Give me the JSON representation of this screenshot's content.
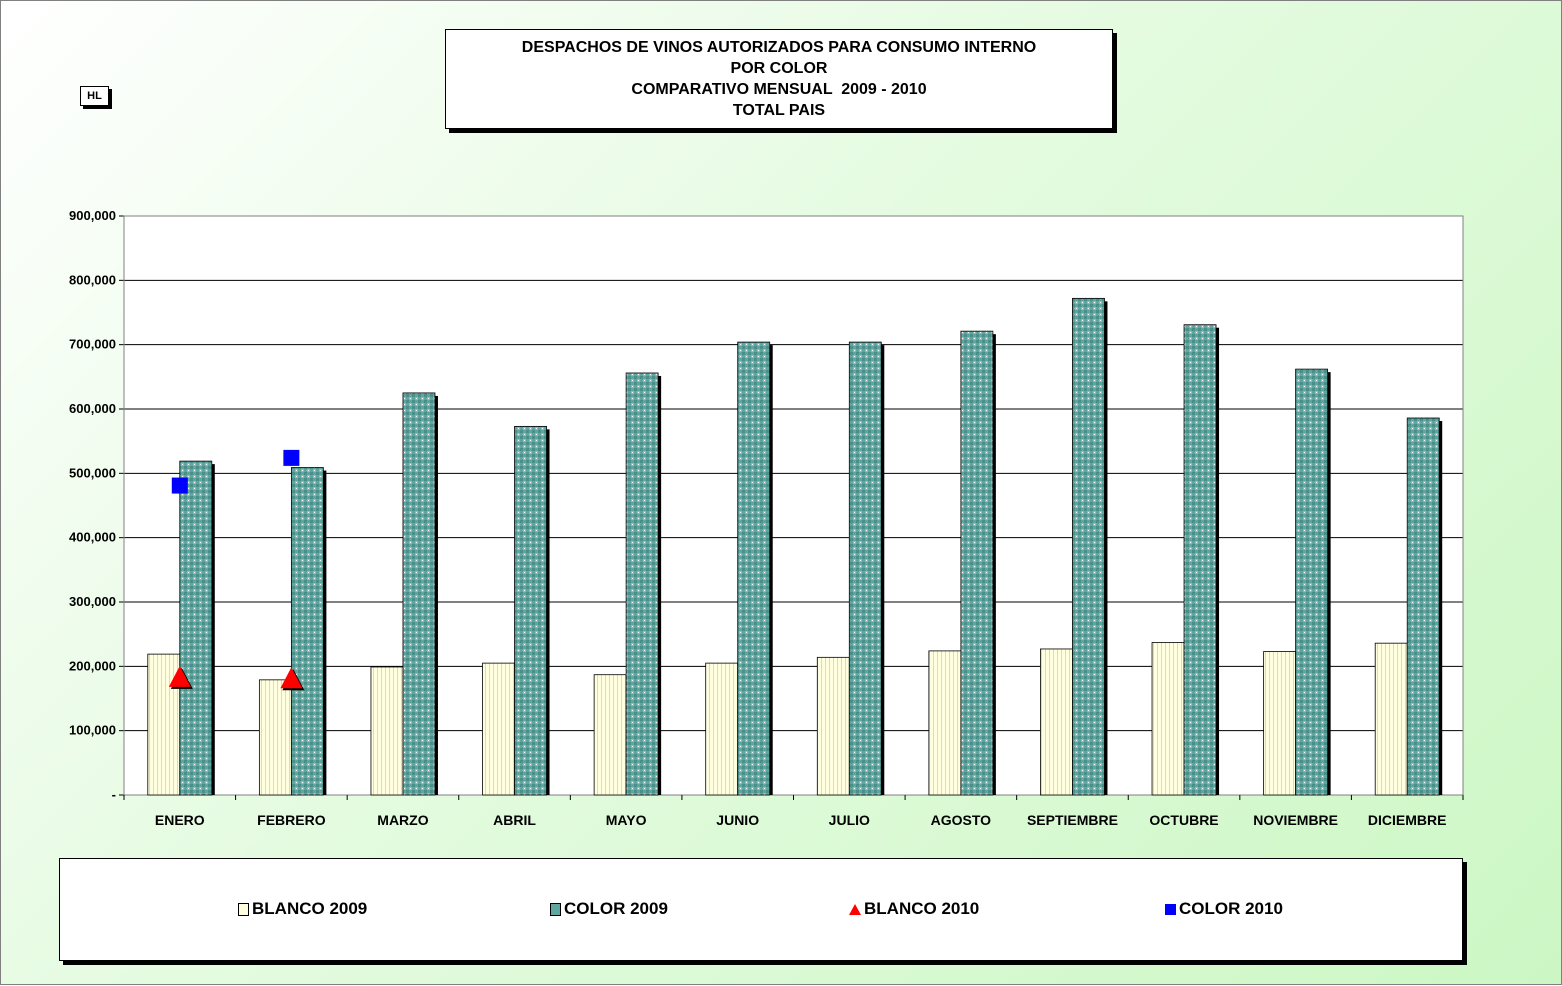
{
  "unit_label": "HL",
  "title_lines": [
    "DESPACHOS DE VINOS AUTORIZADOS PARA CONSUMO INTERNO",
    "POR COLOR",
    "COMPARATIVO MENSUAL  2009 - 2010",
    "TOTAL PAIS"
  ],
  "legend": {
    "blanco_2009": "BLANCO 2009",
    "color_2009": "COLOR 2009",
    "blanco_2010": "BLANCO 2010",
    "color_2010": "COLOR 2010"
  },
  "colors": {
    "blanco_2009": "#ffffe0",
    "color_2009": "#5fa5a0",
    "blanco_2010": "#ff0000",
    "color_2010": "#0000ff"
  },
  "chart_data": {
    "type": "bar",
    "categories": [
      "ENERO",
      "FEBRERO",
      "MARZO",
      "ABRIL",
      "MAYO",
      "JUNIO",
      "JULIO",
      "AGOSTO",
      "SEPTIEMBRE",
      "OCTUBRE",
      "NOVIEMBRE",
      "DICIEMBRE"
    ],
    "series": [
      {
        "name": "BLANCO 2009",
        "kind": "bar",
        "values": [
          219000,
          179000,
          199000,
          205000,
          187000,
          205000,
          214000,
          224000,
          227000,
          237000,
          223000,
          236000
        ]
      },
      {
        "name": "COLOR 2009",
        "kind": "bar",
        "values": [
          519000,
          509000,
          625000,
          573000,
          656000,
          704000,
          704000,
          721000,
          772000,
          731000,
          662000,
          586000
        ]
      },
      {
        "name": "BLANCO 2010",
        "kind": "marker",
        "marker": "triangle",
        "values": [
          182000,
          180000,
          null,
          null,
          null,
          null,
          null,
          null,
          null,
          null,
          null,
          null
        ]
      },
      {
        "name": "COLOR 2010",
        "kind": "marker",
        "marker": "square",
        "values": [
          481000,
          524000,
          null,
          null,
          null,
          null,
          null,
          null,
          null,
          null,
          null,
          null
        ]
      }
    ],
    "ylim": [
      0,
      900000
    ],
    "yticks": [
      0,
      100000,
      200000,
      300000,
      400000,
      500000,
      600000,
      700000,
      800000,
      900000
    ],
    "ytick_labels": [
      "-",
      "100,000",
      "200,000",
      "300,000",
      "400,000",
      "500,000",
      "600,000",
      "700,000",
      "800,000",
      "900,000"
    ],
    "grid": true,
    "legend_position": "bottom"
  }
}
